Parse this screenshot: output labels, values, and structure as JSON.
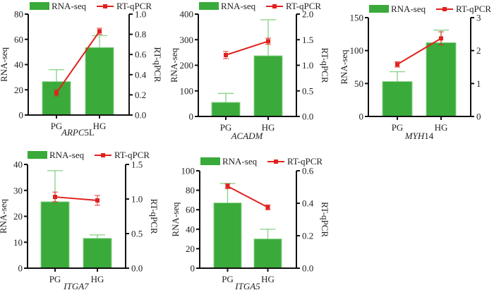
{
  "chart_data": [
    {
      "type": "bar",
      "gene": "ARPC5L",
      "gene_italic": "ARPC",
      "gene_suffix": "5L",
      "categories": [
        "PG",
        "HG"
      ],
      "legend": [
        "RNA-seq",
        "RT-qPCR"
      ],
      "ylabel": "RNA-seq",
      "y2label": "RT-qPCR",
      "ylim": [
        0,
        80
      ],
      "yticks": [
        0,
        20,
        40,
        60,
        80
      ],
      "y2lim": [
        0,
        1.0
      ],
      "y2ticks": [
        "0.0",
        "0.2",
        "0.4",
        "0.6",
        "0.8",
        "1.0"
      ],
      "series": [
        {
          "name": "RNA-seq",
          "kind": "bar",
          "values": [
            26.5,
            53.5
          ],
          "err_upper": [
            36,
            63
          ]
        },
        {
          "name": "RT-qPCR",
          "kind": "line",
          "values": [
            0.22,
            0.83
          ],
          "err": [
            0.03,
            0.03
          ]
        }
      ]
    },
    {
      "type": "bar",
      "gene": "ACADM",
      "gene_italic": "ACADM",
      "gene_suffix": "",
      "categories": [
        "PG",
        "HG"
      ],
      "legend": [
        "RNA-seq",
        "RT-qPCR"
      ],
      "ylabel": "RNA-seq",
      "y2label": "RT-qPCR",
      "ylim": [
        0,
        400
      ],
      "yticks": [
        0,
        100,
        200,
        300,
        400
      ],
      "y2lim": [
        0,
        2.0
      ],
      "y2ticks": [
        "0.0",
        "0.5",
        "1.0",
        "1.5",
        "2.0"
      ],
      "series": [
        {
          "name": "RNA-seq",
          "kind": "bar",
          "values": [
            55,
            237
          ],
          "err_upper": [
            90,
            378
          ]
        },
        {
          "name": "RT-qPCR",
          "kind": "line",
          "values": [
            1.2,
            1.47
          ],
          "err": [
            0.07,
            0.06
          ]
        }
      ]
    },
    {
      "type": "bar",
      "gene": "MYH14",
      "gene_italic": "MYH",
      "gene_suffix": "14",
      "categories": [
        "PG",
        "HG"
      ],
      "legend": [
        "RNA-seq",
        "RT-qPCR"
      ],
      "ylabel": "RNA-seq",
      "y2label": "RT-qPCR",
      "ylim": [
        0,
        150
      ],
      "yticks": [
        0,
        50,
        100,
        150
      ],
      "y2lim": [
        0,
        3
      ],
      "y2ticks": [
        "0",
        "1",
        "2",
        "3"
      ],
      "series": [
        {
          "name": "RNA-seq",
          "kind": "bar",
          "values": [
            53,
            112
          ],
          "err_upper": [
            68,
            131
          ]
        },
        {
          "name": "RT-qPCR",
          "kind": "line",
          "values": [
            1.58,
            2.37
          ],
          "err": [
            0.08,
            0.2
          ]
        }
      ]
    },
    {
      "type": "bar",
      "gene": "ITGA7",
      "gene_italic": "ITGA7",
      "gene_suffix": "",
      "categories": [
        "PG",
        "HG"
      ],
      "legend": [
        "RNA-seq",
        "RT-qPCR"
      ],
      "ylabel": "RNA-seq",
      "y2label": "RT-qPCR",
      "ylim": [
        0,
        40
      ],
      "yticks": [
        0,
        10,
        20,
        30,
        40
      ],
      "y2lim": [
        0,
        1.5
      ],
      "y2ticks": [
        "0.0",
        "0.5",
        "1.0",
        "1.5"
      ],
      "series": [
        {
          "name": "RNA-seq",
          "kind": "bar",
          "values": [
            25.6,
            11.5
          ],
          "err_upper": [
            37.6,
            12.8
          ]
        },
        {
          "name": "RT-qPCR",
          "kind": "line",
          "values": [
            1.03,
            0.98
          ],
          "err": [
            0.07,
            0.07
          ]
        }
      ]
    },
    {
      "type": "bar",
      "gene": "ITGA5",
      "gene_italic": "ITGA5",
      "gene_suffix": "",
      "categories": [
        "PG",
        "HG"
      ],
      "legend": [
        "RNA-seq",
        "RT-qPCR"
      ],
      "ylabel": "RNA-seq",
      "y2label": "RT-qPCR",
      "ylim": [
        0,
        100
      ],
      "yticks": [
        0,
        20,
        40,
        60,
        80,
        100
      ],
      "y2lim": [
        0,
        0.6
      ],
      "y2ticks": [
        "0.0",
        "0.2",
        "0.4",
        "0.6"
      ],
      "series": [
        {
          "name": "RNA-seq",
          "kind": "bar",
          "values": [
            67,
            30
          ],
          "err_upper": [
            87,
            40
          ]
        },
        {
          "name": "RT-qPCR",
          "kind": "line",
          "values": [
            0.505,
            0.375
          ],
          "err": [
            0.015,
            0.015
          ]
        }
      ]
    }
  ],
  "colors": {
    "bar": "#3aaa3a",
    "bar_edge": "#8ed48e",
    "line": "#e0221e",
    "axis": "#111111"
  }
}
